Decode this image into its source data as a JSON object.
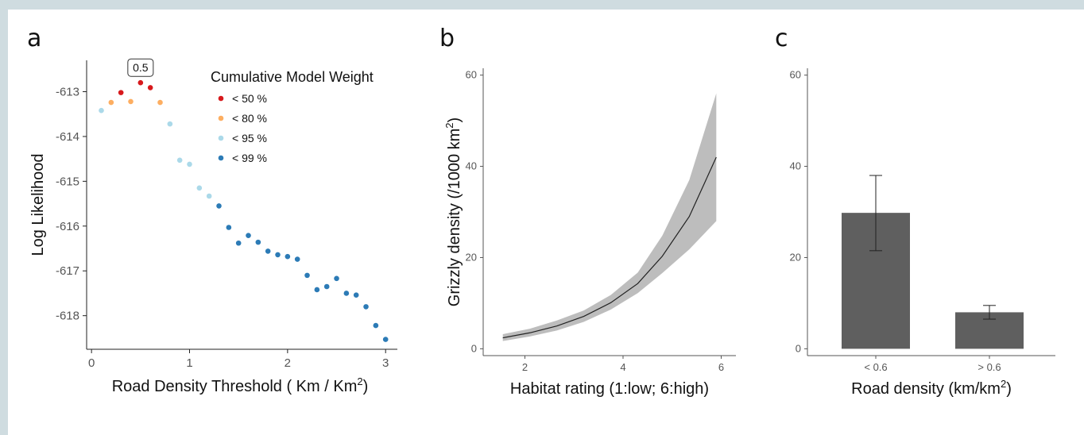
{
  "chart_data": [
    {
      "panel": "a",
      "type": "scatter",
      "xlabel": "Road Density Threshold ( Km / Km",
      "xlabel_sup": "2",
      "xlabel_end": ")",
      "ylabel": "Log Likelihood",
      "xlim": [
        -0.05,
        3.12
      ],
      "ylim": [
        -618.75,
        -612.3
      ],
      "xticks": [
        0,
        1,
        2,
        3
      ],
      "yticks": [
        -613,
        -614,
        -615,
        -616,
        -617,
        -618
      ],
      "annotation": {
        "text": "0.5",
        "x": 0.5,
        "y": -612.8
      },
      "legend": {
        "title": "Cumulative Model Weight",
        "position": "top-right",
        "entries": [
          {
            "label": "< 50 %",
            "color": "#d7191c"
          },
          {
            "label": "< 80 %",
            "color": "#fdae61"
          },
          {
            "label": "< 95 %",
            "color": "#abd9e9"
          },
          {
            "label": "< 99 %",
            "color": "#2c7bb6"
          }
        ]
      },
      "points": [
        {
          "x": 0.1,
          "y": -613.42,
          "group": 2
        },
        {
          "x": 0.2,
          "y": -613.24,
          "group": 1
        },
        {
          "x": 0.3,
          "y": -613.02,
          "group": 0
        },
        {
          "x": 0.4,
          "y": -613.22,
          "group": 1
        },
        {
          "x": 0.5,
          "y": -612.8,
          "group": 0
        },
        {
          "x": 0.6,
          "y": -612.91,
          "group": 0
        },
        {
          "x": 0.7,
          "y": -613.24,
          "group": 1
        },
        {
          "x": 0.8,
          "y": -613.72,
          "group": 2
        },
        {
          "x": 0.9,
          "y": -614.53,
          "group": 2
        },
        {
          "x": 1.0,
          "y": -614.62,
          "group": 2
        },
        {
          "x": 1.1,
          "y": -615.15,
          "group": 2
        },
        {
          "x": 1.2,
          "y": -615.33,
          "group": 2
        },
        {
          "x": 1.3,
          "y": -615.55,
          "group": 3
        },
        {
          "x": 1.4,
          "y": -616.03,
          "group": 3
        },
        {
          "x": 1.5,
          "y": -616.38,
          "group": 3
        },
        {
          "x": 1.6,
          "y": -616.21,
          "group": 3
        },
        {
          "x": 1.7,
          "y": -616.36,
          "group": 3
        },
        {
          "x": 1.8,
          "y": -616.56,
          "group": 3
        },
        {
          "x": 1.9,
          "y": -616.64,
          "group": 3
        },
        {
          "x": 2.0,
          "y": -616.68,
          "group": 3
        },
        {
          "x": 2.1,
          "y": -616.74,
          "group": 3
        },
        {
          "x": 2.2,
          "y": -617.1,
          "group": 3
        },
        {
          "x": 2.3,
          "y": -617.42,
          "group": 3
        },
        {
          "x": 2.4,
          "y": -617.35,
          "group": 3
        },
        {
          "x": 2.5,
          "y": -617.17,
          "group": 3
        },
        {
          "x": 2.6,
          "y": -617.5,
          "group": 3
        },
        {
          "x": 2.7,
          "y": -617.54,
          "group": 3
        },
        {
          "x": 2.8,
          "y": -617.8,
          "group": 3
        },
        {
          "x": 2.9,
          "y": -618.22,
          "group": 3
        },
        {
          "x": 3.0,
          "y": -618.53,
          "group": 3
        }
      ]
    },
    {
      "panel": "b",
      "type": "line",
      "xlabel": "Habitat rating (1:low; 6:high)",
      "ylabel": "Grizzly density (/1000 km",
      "ylabel_sup": "2",
      "ylabel_end": ")",
      "xlim": [
        1.15,
        6.3
      ],
      "ylim": [
        -1.5,
        61.5
      ],
      "xticks": [
        2,
        4,
        6
      ],
      "yticks": [
        0,
        20,
        40,
        60
      ],
      "line_color": "#222222",
      "band_color": "#bdbdbd",
      "series": [
        {
          "x": [
            1.55,
            2.1,
            2.65,
            3.2,
            3.75,
            4.3,
            4.8,
            5.35,
            5.9
          ],
          "y": [
            2.4,
            3.5,
            5.0,
            7.1,
            10.1,
            14.3,
            20.3,
            29.0,
            42.0
          ],
          "lower": [
            1.7,
            2.7,
            4.0,
            5.9,
            8.6,
            12.2,
            16.6,
            21.8,
            28.0
          ],
          "upper": [
            3.2,
            4.4,
            6.2,
            8.4,
            11.8,
            16.7,
            24.8,
            37.0,
            56.0
          ]
        }
      ]
    },
    {
      "panel": "c",
      "type": "bar",
      "xlabel": "Road density (km/km",
      "xlabel_sup": "2",
      "xlabel_end": ")",
      "categories": [
        "< 0.6",
        "> 0.6"
      ],
      "values": [
        29.8,
        8.0
      ],
      "err_low": [
        21.5,
        6.5
      ],
      "err_high": [
        38.0,
        9.5
      ],
      "ylim": [
        -1.5,
        61.5
      ],
      "yticks": [
        0,
        20,
        40,
        60
      ],
      "bar_color": "#5f5f5f"
    }
  ]
}
